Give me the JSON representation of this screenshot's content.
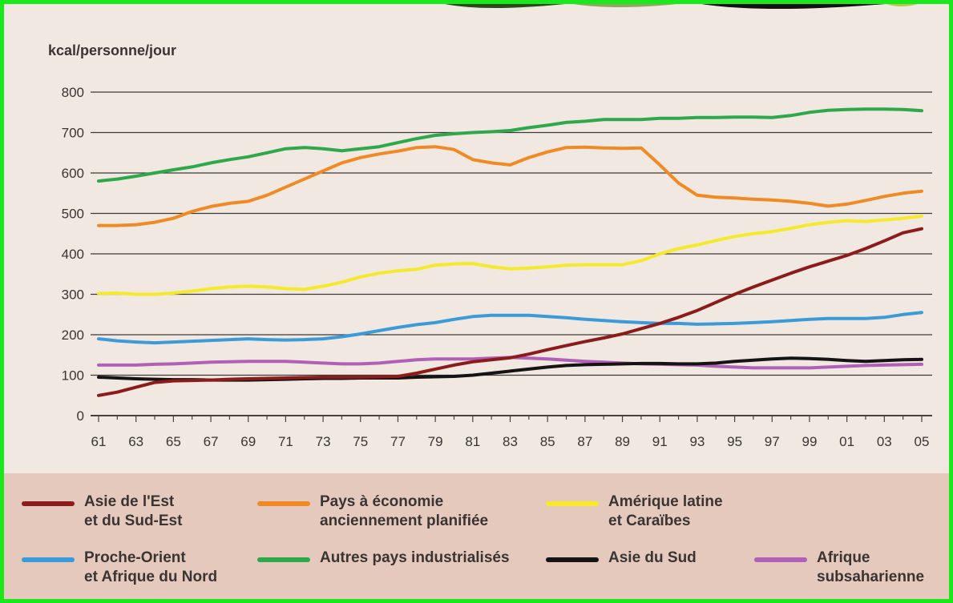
{
  "chart_data": {
    "type": "line",
    "ylabel": "kcal/personne/jour",
    "ylim": [
      0,
      800
    ],
    "yticks": [
      0,
      100,
      200,
      300,
      400,
      500,
      600,
      700,
      800
    ],
    "grid": true,
    "legend_position": "bottom",
    "x": [
      1961,
      1962,
      1963,
      1964,
      1965,
      1966,
      1967,
      1968,
      1969,
      1970,
      1971,
      1972,
      1973,
      1974,
      1975,
      1976,
      1977,
      1978,
      1979,
      1980,
      1981,
      1982,
      1983,
      1984,
      1985,
      1986,
      1987,
      1988,
      1989,
      1990,
      1991,
      1992,
      1993,
      1994,
      1995,
      1996,
      1997,
      1998,
      1999,
      2000,
      2001,
      2002,
      2003,
      2004,
      2005
    ],
    "x_tick_labels": [
      "61",
      "63",
      "65",
      "67",
      "69",
      "71",
      "73",
      "75",
      "77",
      "79",
      "81",
      "83",
      "85",
      "87",
      "89",
      "91",
      "93",
      "95",
      "97",
      "99",
      "01",
      "03",
      "05"
    ],
    "series": [
      {
        "name": "Autres pays industrialisés",
        "color": "#2da84a",
        "values": [
          580,
          585,
          592,
          600,
          608,
          615,
          625,
          633,
          640,
          650,
          660,
          663,
          660,
          655,
          660,
          665,
          675,
          685,
          693,
          697,
          700,
          702,
          705,
          712,
          718,
          725,
          728,
          732,
          732,
          732,
          735,
          735,
          737,
          737,
          738,
          738,
          737,
          742,
          750,
          755,
          757,
          758,
          758,
          757,
          754
        ]
      },
      {
        "name": "Pays à économie\nanciennement planifiée",
        "color": "#f08a24",
        "values": [
          470,
          470,
          472,
          478,
          488,
          505,
          517,
          525,
          530,
          545,
          565,
          585,
          605,
          625,
          638,
          647,
          654,
          663,
          665,
          658,
          633,
          625,
          620,
          638,
          652,
          663,
          664,
          662,
          661,
          662,
          620,
          575,
          545,
          540,
          538,
          535,
          533,
          530,
          525,
          518,
          523,
          532,
          542,
          550,
          555
        ]
      },
      {
        "name": "Amérique latine\net Caraïbes",
        "color": "#f4ea2a",
        "values": [
          302,
          303,
          300,
          300,
          303,
          308,
          314,
          318,
          320,
          318,
          314,
          312,
          320,
          330,
          343,
          352,
          358,
          362,
          372,
          375,
          376,
          368,
          363,
          365,
          368,
          372,
          373,
          373,
          373,
          383,
          400,
          413,
          422,
          433,
          443,
          450,
          455,
          463,
          472,
          478,
          482,
          480,
          484,
          488,
          493
        ]
      },
      {
        "name": "Proche-Orient\net Afrique du Nord",
        "color": "#3a9bd8",
        "values": [
          190,
          185,
          182,
          180,
          182,
          184,
          186,
          188,
          190,
          188,
          187,
          188,
          190,
          195,
          202,
          210,
          218,
          225,
          230,
          238,
          245,
          248,
          248,
          248,
          245,
          242,
          238,
          235,
          232,
          230,
          228,
          228,
          226,
          227,
          228,
          230,
          232,
          235,
          238,
          240,
          240,
          240,
          243,
          250,
          255
        ]
      },
      {
        "name": "Afrique\nsubsaharienne",
        "color": "#b061b7",
        "values": [
          125,
          125,
          125,
          127,
          128,
          130,
          132,
          133,
          134,
          134,
          134,
          132,
          130,
          128,
          128,
          130,
          134,
          138,
          140,
          140,
          140,
          142,
          144,
          142,
          140,
          137,
          134,
          132,
          130,
          128,
          127,
          126,
          125,
          122,
          120,
          118,
          118,
          118,
          118,
          120,
          122,
          124,
          125,
          126,
          127
        ]
      },
      {
        "name": "Asie du Sud",
        "color": "#151313",
        "values": [
          95,
          93,
          91,
          90,
          89,
          89,
          88,
          88,
          88,
          89,
          90,
          91,
          92,
          92,
          93,
          93,
          93,
          95,
          96,
          97,
          100,
          105,
          110,
          115,
          120,
          124,
          126,
          127,
          128,
          129,
          129,
          128,
          128,
          130,
          134,
          137,
          140,
          142,
          141,
          139,
          136,
          134,
          136,
          138,
          139
        ]
      },
      {
        "name": "Asie de l'Est\net du Sud-Est",
        "color": "#8c1c1c",
        "values": [
          50,
          58,
          70,
          82,
          86,
          87,
          88,
          90,
          91,
          92,
          93,
          94,
          95,
          95,
          95,
          96,
          97,
          105,
          115,
          125,
          133,
          138,
          143,
          152,
          163,
          173,
          183,
          192,
          202,
          215,
          228,
          243,
          260,
          280,
          300,
          318,
          335,
          352,
          368,
          382,
          396,
          413,
          432,
          452,
          462
        ]
      }
    ]
  }
}
